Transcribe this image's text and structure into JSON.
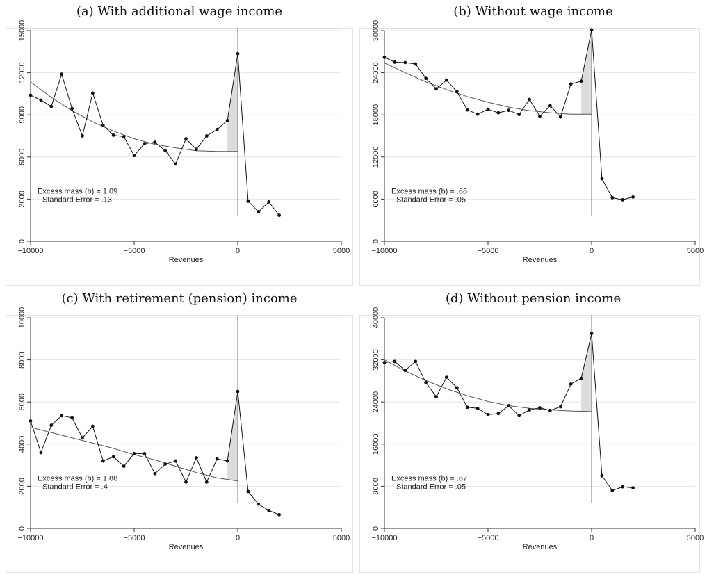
{
  "chart_data": [
    {
      "type": "line",
      "title": "(a) With additional wage income",
      "xlabel": "Revenues",
      "ylabel": "",
      "xlim": [
        -10000,
        5000
      ],
      "ylim": [
        0,
        15000
      ],
      "xticks": [
        -10000,
        -5000,
        0,
        5000
      ],
      "yticks": [
        0,
        3000,
        6000,
        9000,
        12000,
        15000
      ],
      "grid": true,
      "x": [
        -10000,
        -9500,
        -9000,
        -8500,
        -8000,
        -7500,
        -7000,
        -6500,
        -6000,
        -5500,
        -5000,
        -4500,
        -4000,
        -3500,
        -3000,
        -2500,
        -2000,
        -1500,
        -1000,
        -500,
        0,
        500,
        1000,
        1500,
        2000
      ],
      "series": [
        {
          "values": [
            10400,
            10050,
            9600,
            11900,
            9450,
            7500,
            10550,
            8250,
            7550,
            7450,
            6100,
            6950,
            7050,
            6450,
            5500,
            7300,
            6550,
            7500,
            7950,
            8600,
            13350,
            2850,
            2100,
            2800,
            1850
          ]
        }
      ],
      "fit": {
        "x": [
          -10000,
          -9000,
          -8000,
          -7000,
          -6000,
          -5000,
          -4000,
          -3000,
          -2000,
          -1000,
          0
        ],
        "values": [
          11350,
          10250,
          9300,
          8500,
          7850,
          7300,
          6900,
          6650,
          6450,
          6400,
          6400
        ]
      },
      "excess_region": [
        -500,
        0
      ],
      "annotation": [
        "Excess mass (b) = 1.09",
        "Standard Error = .13"
      ]
    },
    {
      "type": "line",
      "title": "(b) Without wage income",
      "xlabel": "Revenues",
      "ylabel": "",
      "xlim": [
        -10000,
        5000
      ],
      "ylim": [
        0,
        30000
      ],
      "xticks": [
        -10000,
        -5000,
        0,
        5000
      ],
      "yticks": [
        0,
        6000,
        12000,
        18000,
        24000,
        30000
      ],
      "grid": true,
      "x": [
        -10000,
        -9500,
        -9000,
        -8500,
        -8000,
        -7500,
        -7000,
        -6500,
        -6000,
        -5500,
        -5000,
        -4500,
        -4000,
        -3500,
        -3000,
        -2500,
        -2000,
        -1500,
        -1000,
        -500,
        0,
        500,
        1000,
        1500,
        2000
      ],
      "series": [
        {
          "values": [
            26200,
            25500,
            25450,
            25250,
            23200,
            21700,
            22950,
            21300,
            18700,
            18100,
            18800,
            18300,
            18650,
            18050,
            20200,
            17800,
            19300,
            17700,
            22400,
            22800,
            30100,
            8900,
            6200,
            5900,
            6300
          ]
        }
      ],
      "fit": {
        "x": [
          -10000,
          -9000,
          -8000,
          -7000,
          -6000,
          -5000,
          -4000,
          -3000,
          -2000,
          -1000,
          0
        ],
        "values": [
          25400,
          24000,
          22700,
          21600,
          20600,
          19800,
          19100,
          18600,
          18300,
          18100,
          18100
        ]
      },
      "excess_region": [
        -500,
        0
      ],
      "annotation": [
        "Excess mass (b) = .66",
        "Standard Error = .05"
      ]
    },
    {
      "type": "line",
      "title": "(c) With retirement (pension) income",
      "xlabel": "Revenues",
      "ylabel": "",
      "xlim": [
        -10000,
        5000
      ],
      "ylim": [
        0,
        10000
      ],
      "xticks": [
        -10000,
        -5000,
        0,
        5000
      ],
      "yticks": [
        0,
        2000,
        4000,
        6000,
        8000,
        10000
      ],
      "grid": true,
      "x": [
        -10000,
        -9500,
        -9000,
        -8500,
        -8000,
        -7500,
        -7000,
        -6500,
        -6000,
        -5500,
        -5000,
        -4500,
        -4000,
        -3500,
        -3000,
        -2500,
        -2000,
        -1500,
        -1000,
        -500,
        0,
        500,
        1000,
        1500,
        2000
      ],
      "series": [
        {
          "values": [
            5100,
            3600,
            4900,
            5350,
            5250,
            4300,
            4850,
            3200,
            3400,
            2950,
            3550,
            3550,
            2600,
            3050,
            3200,
            2200,
            3350,
            2200,
            3300,
            3200,
            6500,
            1750,
            1150,
            850,
            650
          ]
        }
      ],
      "fit": {
        "x": [
          -10000,
          -9000,
          -8000,
          -7000,
          -6000,
          -5000,
          -4000,
          -3000,
          -2000,
          -1000,
          0
        ],
        "values": [
          4800,
          4550,
          4300,
          4050,
          3800,
          3500,
          3250,
          2950,
          2650,
          2400,
          2250
        ]
      },
      "excess_region": [
        -500,
        0
      ],
      "annotation": [
        "Excess mass (b) = 1.88",
        "Standard Error = .4"
      ]
    },
    {
      "type": "line",
      "title": "(d) Without pension income",
      "xlabel": "Revenues",
      "ylabel": "",
      "xlim": [
        -10000,
        5000
      ],
      "ylim": [
        0,
        40000
      ],
      "xticks": [
        -10000,
        -5000,
        0,
        5000
      ],
      "yticks": [
        0,
        8000,
        16000,
        24000,
        32000,
        40000
      ],
      "grid": true,
      "x": [
        -10000,
        -9500,
        -9000,
        -8500,
        -8000,
        -7500,
        -7000,
        -6500,
        -6000,
        -5500,
        -5000,
        -4500,
        -4000,
        -3500,
        -3000,
        -2500,
        -2000,
        -1500,
        -1000,
        -500,
        0,
        500,
        1000,
        1500,
        2000
      ],
      "series": [
        {
          "values": [
            31500,
            31700,
            30000,
            31700,
            27700,
            25000,
            28700,
            26700,
            23000,
            22800,
            21600,
            21800,
            23300,
            21400,
            22500,
            22900,
            22400,
            23100,
            27400,
            28500,
            37000,
            10000,
            7200,
            7900,
            7700
          ]
        }
      ],
      "fit": {
        "x": [
          -10000,
          -9000,
          -8000,
          -7000,
          -6000,
          -5000,
          -4000,
          -3000,
          -2000,
          -1000,
          0
        ],
        "values": [
          32000,
          29900,
          28100,
          26500,
          25200,
          24100,
          23300,
          22800,
          22500,
          22300,
          22200
        ]
      },
      "excess_region": [
        -500,
        0
      ],
      "annotation": [
        "Excess mass (b) = .67",
        "Standard Error = .05"
      ]
    }
  ]
}
